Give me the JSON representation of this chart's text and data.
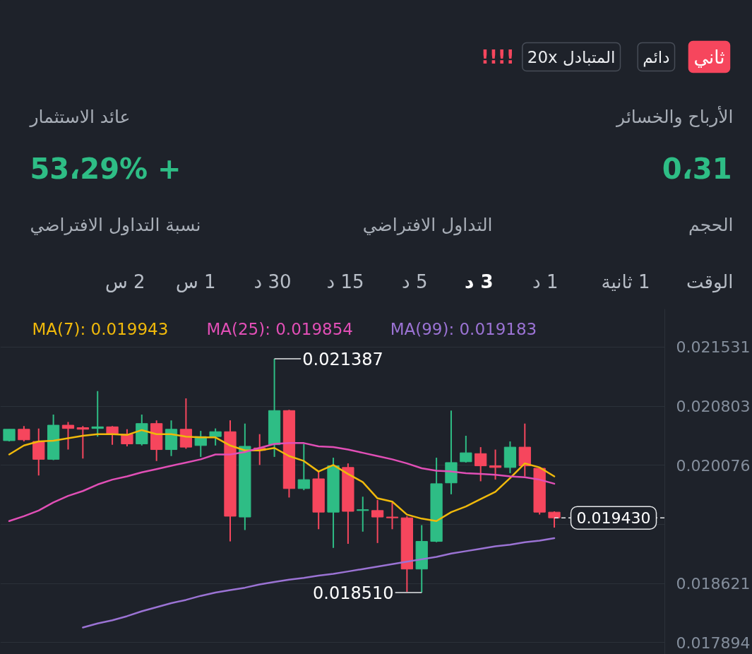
{
  "chart_data": {
    "type": "candlestick",
    "annotations": [
      "ثاني",
      "دائم",
      "المتبادل 20x",
      "!!!!",
      "الأرباح والخسائر",
      "0،31",
      "عائد الاستثمار",
      "+ 53،29%",
      "الحجم",
      "التداول الافتراضي",
      "نسبة التداول الافتراضي",
      "الوقت",
      "1 ثانية",
      "1 د",
      "3 د",
      "5 د",
      "15 د",
      "30 د",
      "1 س",
      "2 س",
      "0.021387",
      "0.018510"
    ],
    "categories": [
      null,
      null,
      null,
      null,
      null,
      null,
      null,
      null,
      null,
      null,
      null,
      null,
      null,
      null,
      null,
      null,
      null,
      null,
      null,
      null,
      null,
      null,
      null,
      null,
      null,
      null,
      null,
      null,
      null,
      null,
      null,
      null,
      null,
      null,
      null,
      null,
      null,
      null
    ],
    "ohlc": [
      [
        0.02038,
        0.02052,
        0.02037,
        0.02052
      ],
      [
        0.02052,
        0.02056,
        0.02037,
        0.02039
      ],
      [
        0.02037,
        0.02053,
        0.01995,
        0.02015
      ],
      [
        0.02015,
        0.0207,
        0.02014,
        0.02057
      ],
      [
        0.02057,
        0.02061,
        0.02027,
        0.02053
      ],
      [
        0.02054,
        0.02056,
        0.02016,
        0.02052
      ],
      [
        0.02053,
        0.02099,
        0.02043,
        0.02055
      ],
      [
        0.02055,
        0.02056,
        0.02033,
        0.02046
      ],
      [
        0.02046,
        0.02052,
        0.02031,
        0.02034
      ],
      [
        0.02034,
        0.0207,
        0.02032,
        0.02059
      ],
      [
        0.02059,
        0.02063,
        0.02013,
        0.02027
      ],
      [
        0.02027,
        0.02063,
        0.02019,
        0.02052
      ],
      [
        0.02052,
        0.0209,
        0.02028,
        0.0203
      ],
      [
        0.02032,
        0.0205,
        0.02018,
        0.02043
      ],
      [
        0.02043,
        0.02053,
        0.02032,
        0.02049
      ],
      [
        0.02049,
        0.02063,
        0.01914,
        0.01945
      ],
      [
        0.01944,
        0.02059,
        0.01928,
        0.02031
      ],
      [
        0.02029,
        0.02046,
        0.02008,
        0.02026
      ],
      [
        0.02033,
        0.021387,
        0.02018,
        0.02075
      ],
      [
        0.02075,
        0.02076,
        0.01968,
        0.01979
      ],
      [
        0.01979,
        0.02034,
        0.01977,
        0.0199
      ],
      [
        0.01991,
        0.02,
        0.01929,
        0.0195
      ],
      [
        0.0195,
        0.02017,
        0.01906,
        0.02007
      ],
      [
        0.02005,
        0.0201,
        0.01911,
        0.01951
      ],
      [
        0.01952,
        0.01969,
        0.01926,
        0.01953
      ],
      [
        0.01952,
        0.01965,
        0.01912,
        0.01944
      ],
      [
        0.01944,
        0.01962,
        0.01929,
        0.01943
      ],
      [
        0.01943,
        0.01945,
        0.01852,
        0.0188
      ],
      [
        0.0188,
        0.01934,
        0.01851,
        0.01914
      ],
      [
        0.01914,
        0.02017,
        0.01913,
        0.01985
      ],
      [
        0.01986,
        0.02075,
        0.01972,
        0.02011
      ],
      [
        0.02012,
        0.02044,
        0.02011,
        0.02023
      ],
      [
        0.02022,
        0.0203,
        0.01988,
        0.02007
      ],
      [
        0.02007,
        0.02027,
        0.0199,
        0.02005
      ],
      [
        0.02005,
        0.02037,
        0.01998,
        0.0203
      ],
      [
        0.0203,
        0.02059,
        0.01994,
        0.02007
      ],
      [
        0.02004,
        0.02005,
        0.01947,
        0.0195
      ],
      [
        0.0195,
        0.01951,
        0.01931,
        0.01943
      ]
    ],
    "colors": [
      "#2ebd85",
      "#f6465d",
      "#f6465d",
      "#2ebd85",
      "#f6465d",
      "#f6465d",
      "#2ebd85",
      "#f6465d",
      "#f6465d",
      "#2ebd85",
      "#f6465d",
      "#2ebd85",
      "#f6465d",
      "#2ebd85",
      "#2ebd85",
      "#f6465d",
      "#2ebd85",
      "#f6465d",
      "#2ebd85",
      "#f6465d",
      "#2ebd85",
      "#f6465d",
      "#2ebd85",
      "#f6465d",
      "#2ebd85",
      "#f6465d",
      "#f6465d",
      "#f6465d",
      "#2ebd85",
      "#2ebd85",
      "#2ebd85",
      "#2ebd85",
      "#f6465d",
      "#f6465d",
      "#2ebd85",
      "#f6465d",
      "#f6465d",
      "#f6465d"
    ],
    "series": [
      {
        "name": "MA(7): 0.019943",
        "type": "line",
        "color": "#f0b90b",
        "values": [
          0.02021,
          0.02032,
          0.02037,
          0.02038,
          0.02041,
          0.02044,
          0.02046,
          0.02046,
          0.02045,
          0.02051,
          0.02046,
          0.02046,
          0.02043,
          0.02042,
          0.02042,
          0.02032,
          0.02026,
          0.02026,
          0.02029,
          0.02019,
          0.02013,
          0.02,
          0.02008,
          0.01997,
          0.01987,
          0.01967,
          0.01963,
          0.01947,
          0.01942,
          0.01939,
          0.0195,
          0.01957,
          0.01966,
          0.01975,
          0.01992,
          0.0201,
          0.02005,
          0.01994
        ]
      },
      {
        "name": "MA(25): 0.019854",
        "type": "line",
        "color": "#e14fb6",
        "values": [
          0.01939,
          0.01945,
          0.01952,
          0.01962,
          0.0197,
          0.01976,
          0.01984,
          0.0199,
          0.01994,
          0.01999,
          0.02003,
          0.02007,
          0.02011,
          0.02015,
          0.02021,
          0.02021,
          0.02024,
          0.02029,
          0.02034,
          0.02035,
          0.02035,
          0.02031,
          0.0203,
          0.02027,
          0.02023,
          0.02019,
          0.02015,
          0.0201,
          0.02004,
          0.02001,
          0.02,
          0.01998,
          0.01997,
          0.01996,
          0.01994,
          0.01993,
          0.0199,
          0.01985
        ]
      },
      {
        "name": "MA(99): 0.019183",
        "type": "line",
        "color": "#9b73d4",
        "values": [
          null,
          null,
          null,
          null,
          null,
          0.01808,
          0.01813,
          0.01817,
          0.01822,
          0.01828,
          0.01833,
          0.01838,
          0.01842,
          0.01847,
          0.01851,
          0.01854,
          0.01857,
          0.01861,
          0.01864,
          0.01867,
          0.01869,
          0.01872,
          0.01874,
          0.01877,
          0.0188,
          0.01883,
          0.01886,
          0.01889,
          0.01892,
          0.01895,
          0.01899,
          0.01902,
          0.01905,
          0.01908,
          0.0191,
          0.01913,
          0.01915,
          0.01918
        ]
      }
    ],
    "ylim": [
      0.01775,
      0.022
    ],
    "yticks": [
      0.021531,
      0.020803,
      0.020076,
      {
        "value": 0.019348,
        "label": null
      },
      0.018621,
      0.017894
    ],
    "grid": "y",
    "legend": "top",
    "ref_lines": [
      {
        "axis": "y",
        "value": 0.01943,
        "label": "0.019430",
        "line_style": "dashed",
        "color": "#e6e8ea"
      }
    ]
  }
}
